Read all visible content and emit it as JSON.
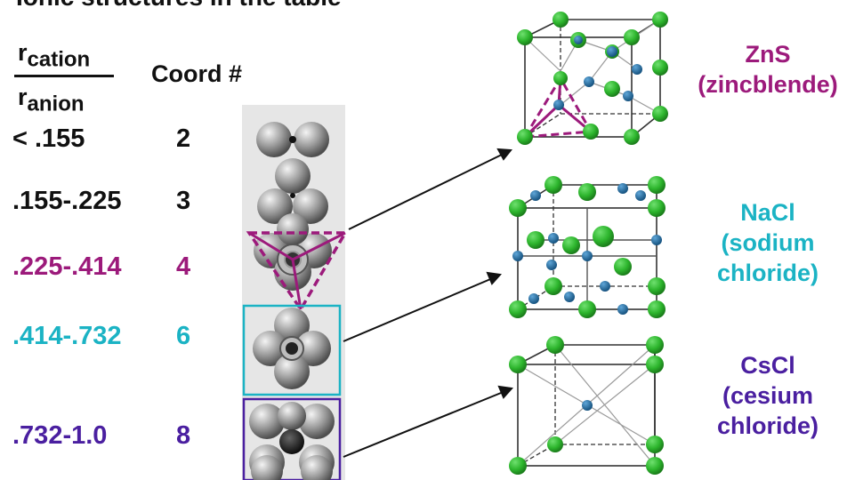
{
  "top_text": "Ionic structures in the table",
  "header": {
    "ratio_numerator": "r",
    "ratio_numerator_sub": "cation",
    "ratio_denominator": "r",
    "ratio_denominator_sub": "anion",
    "coord_label": "Coord #"
  },
  "rows": [
    {
      "ratio": "< .155",
      "coord": "2",
      "color": "#111111"
    },
    {
      "ratio": ".155-.225",
      "coord": "3",
      "color": "#111111"
    },
    {
      "ratio": ".225-.414",
      "coord": "4",
      "color": "#9c1a7b"
    },
    {
      "ratio": ".414-.732",
      "coord": "6",
      "color": "#1bb3c4"
    },
    {
      "ratio": ".732-1.0",
      "coord": "8",
      "color": "#4a1fa0"
    }
  ],
  "structures": [
    {
      "formula": "ZnS",
      "name_line1": "(zincblende)",
      "name_line2": "",
      "color": "#9c1a7b"
    },
    {
      "formula": "NaCl",
      "name_line1": "(sodium",
      "name_line2": "chloride)",
      "color": "#1bb3c4"
    },
    {
      "formula": "CsCl",
      "name_line1": "(cesium",
      "name_line2": "chloride)",
      "color": "#4a1fa0"
    }
  ],
  "colors": {
    "anion_green": "#2db52d",
    "cation_blue": "#1f6fae",
    "sphere_gray": "#8a8a8a",
    "panel_bg": "#e6e6e6"
  }
}
